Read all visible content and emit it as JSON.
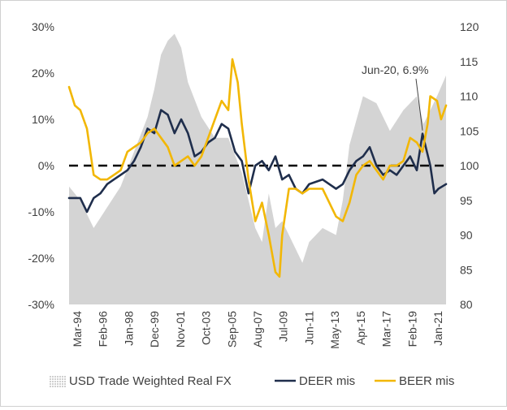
{
  "chart_data": {
    "type": "line",
    "title": "",
    "left_axis": {
      "ticks": [
        "30%",
        "20%",
        "10%",
        "0%",
        "-10%",
        "-20%",
        "-30%"
      ],
      "range": [
        -30,
        30
      ]
    },
    "right_axis": {
      "ticks": [
        "120",
        "115",
        "110",
        "105",
        "100",
        "95",
        "90",
        "85",
        "80"
      ],
      "range": [
        80,
        120
      ]
    },
    "x_tick_labels": [
      "Mar-94",
      "Feb-96",
      "Jan-98",
      "Dec-99",
      "Nov-01",
      "Oct-03",
      "Sep-05",
      "Aug-07",
      "Jul-09",
      "Jun-11",
      "May-13",
      "Apr-15",
      "Mar-17",
      "Feb-19",
      "Jan-21"
    ],
    "x_range": [
      1994.17,
      2022.17
    ],
    "zero_line": "dashed",
    "legend_position": "bottom",
    "annotation": {
      "text": "Jun-20, 6.9%",
      "x": 2020.42,
      "y": 6.9
    },
    "series": [
      {
        "name": "USD Trade Weighted Real FX",
        "kind": "area",
        "axis": "right",
        "color": "#d4d4d4",
        "points": [
          [
            1994.17,
            97
          ],
          [
            1995.0,
            95
          ],
          [
            1996.0,
            91
          ],
          [
            1997.0,
            94
          ],
          [
            1998.0,
            97
          ],
          [
            1999.0,
            102
          ],
          [
            2000.0,
            107
          ],
          [
            2000.5,
            111
          ],
          [
            2001.0,
            116
          ],
          [
            2001.5,
            118
          ],
          [
            2002.0,
            119
          ],
          [
            2002.5,
            117
          ],
          [
            2003.0,
            112
          ],
          [
            2004.0,
            107
          ],
          [
            2005.0,
            104
          ],
          [
            2006.0,
            104
          ],
          [
            2007.0,
            99
          ],
          [
            2007.5,
            95
          ],
          [
            2008.0,
            91
          ],
          [
            2008.5,
            89
          ],
          [
            2009.0,
            96
          ],
          [
            2009.5,
            91
          ],
          [
            2010.0,
            92
          ],
          [
            2011.0,
            88
          ],
          [
            2011.5,
            86
          ],
          [
            2012.0,
            89
          ],
          [
            2013.0,
            91
          ],
          [
            2014.0,
            90
          ],
          [
            2014.5,
            95
          ],
          [
            2015.0,
            103
          ],
          [
            2016.0,
            110
          ],
          [
            2017.0,
            109
          ],
          [
            2018.0,
            105
          ],
          [
            2019.0,
            108
          ],
          [
            2020.0,
            110
          ],
          [
            2020.5,
            106
          ],
          [
            2021.0,
            108
          ],
          [
            2021.5,
            110
          ],
          [
            2022.17,
            113
          ]
        ]
      },
      {
        "name": "DEER mis",
        "kind": "line",
        "axis": "left",
        "color": "#1f2e4c",
        "points": [
          [
            1994.17,
            -7
          ],
          [
            1995.0,
            -7
          ],
          [
            1995.5,
            -10
          ],
          [
            1996.0,
            -7
          ],
          [
            1996.5,
            -6
          ],
          [
            1997.0,
            -4
          ],
          [
            1997.5,
            -3
          ],
          [
            1998.0,
            -2
          ],
          [
            1998.5,
            -1
          ],
          [
            1999.0,
            1
          ],
          [
            1999.5,
            4
          ],
          [
            2000.0,
            8
          ],
          [
            2000.5,
            7
          ],
          [
            2001.0,
            12
          ],
          [
            2001.5,
            11
          ],
          [
            2002.0,
            7
          ],
          [
            2002.5,
            10
          ],
          [
            2003.0,
            7
          ],
          [
            2003.5,
            2
          ],
          [
            2004.0,
            3
          ],
          [
            2004.5,
            5
          ],
          [
            2005.0,
            6
          ],
          [
            2005.5,
            9
          ],
          [
            2006.0,
            8
          ],
          [
            2006.5,
            3
          ],
          [
            2007.0,
            1
          ],
          [
            2007.5,
            -6
          ],
          [
            2008.0,
            0
          ],
          [
            2008.5,
            1
          ],
          [
            2009.0,
            -1
          ],
          [
            2009.5,
            2
          ],
          [
            2010.0,
            -3
          ],
          [
            2010.5,
            -2
          ],
          [
            2011.0,
            -5
          ],
          [
            2011.5,
            -6
          ],
          [
            2012.0,
            -4
          ],
          [
            2013.0,
            -3
          ],
          [
            2013.5,
            -4
          ],
          [
            2014.0,
            -5
          ],
          [
            2014.5,
            -4
          ],
          [
            2015.0,
            -1
          ],
          [
            2015.5,
            1
          ],
          [
            2016.0,
            2
          ],
          [
            2016.5,
            4
          ],
          [
            2017.0,
            0
          ],
          [
            2017.5,
            -2
          ],
          [
            2018.0,
            -1
          ],
          [
            2018.5,
            -2
          ],
          [
            2019.0,
            0
          ],
          [
            2019.5,
            2
          ],
          [
            2020.0,
            -1
          ],
          [
            2020.42,
            6.9
          ],
          [
            2021.0,
            0
          ],
          [
            2021.3,
            -6
          ],
          [
            2021.6,
            -5
          ],
          [
            2022.17,
            -4
          ]
        ]
      },
      {
        "name": "BEER mis",
        "kind": "line",
        "axis": "left",
        "color": "#f2b705",
        "points": [
          [
            1994.17,
            17
          ],
          [
            1994.6,
            13
          ],
          [
            1995.0,
            12
          ],
          [
            1995.5,
            8
          ],
          [
            1996.0,
            -2
          ],
          [
            1996.5,
            -3
          ],
          [
            1997.0,
            -3
          ],
          [
            1997.5,
            -2
          ],
          [
            1998.0,
            -1
          ],
          [
            1998.5,
            3
          ],
          [
            1999.0,
            4
          ],
          [
            1999.5,
            5
          ],
          [
            2000.0,
            7
          ],
          [
            2000.5,
            8
          ],
          [
            2001.0,
            6
          ],
          [
            2001.5,
            4
          ],
          [
            2002.0,
            0
          ],
          [
            2002.5,
            1
          ],
          [
            2003.0,
            2
          ],
          [
            2003.5,
            0
          ],
          [
            2004.0,
            2
          ],
          [
            2004.5,
            6
          ],
          [
            2005.0,
            10
          ],
          [
            2005.5,
            14
          ],
          [
            2006.0,
            12
          ],
          [
            2006.3,
            23
          ],
          [
            2006.7,
            18
          ],
          [
            2007.0,
            9
          ],
          [
            2007.5,
            -3
          ],
          [
            2008.0,
            -12
          ],
          [
            2008.5,
            -8
          ],
          [
            2009.0,
            -15
          ],
          [
            2009.5,
            -23
          ],
          [
            2009.8,
            -24
          ],
          [
            2010.0,
            -15
          ],
          [
            2010.5,
            -5
          ],
          [
            2011.0,
            -5
          ],
          [
            2011.5,
            -6
          ],
          [
            2012.0,
            -5
          ],
          [
            2013.0,
            -5
          ],
          [
            2013.5,
            -8
          ],
          [
            2014.0,
            -11
          ],
          [
            2014.5,
            -12
          ],
          [
            2015.0,
            -8
          ],
          [
            2015.5,
            -2
          ],
          [
            2016.0,
            0
          ],
          [
            2016.5,
            1
          ],
          [
            2017.0,
            -1
          ],
          [
            2017.5,
            -3
          ],
          [
            2018.0,
            0
          ],
          [
            2018.5,
            0
          ],
          [
            2019.0,
            1
          ],
          [
            2019.5,
            6
          ],
          [
            2020.0,
            5
          ],
          [
            2020.42,
            3
          ],
          [
            2020.8,
            9
          ],
          [
            2021.0,
            15
          ],
          [
            2021.5,
            14
          ],
          [
            2021.8,
            10
          ],
          [
            2022.17,
            13
          ]
        ]
      }
    ]
  }
}
